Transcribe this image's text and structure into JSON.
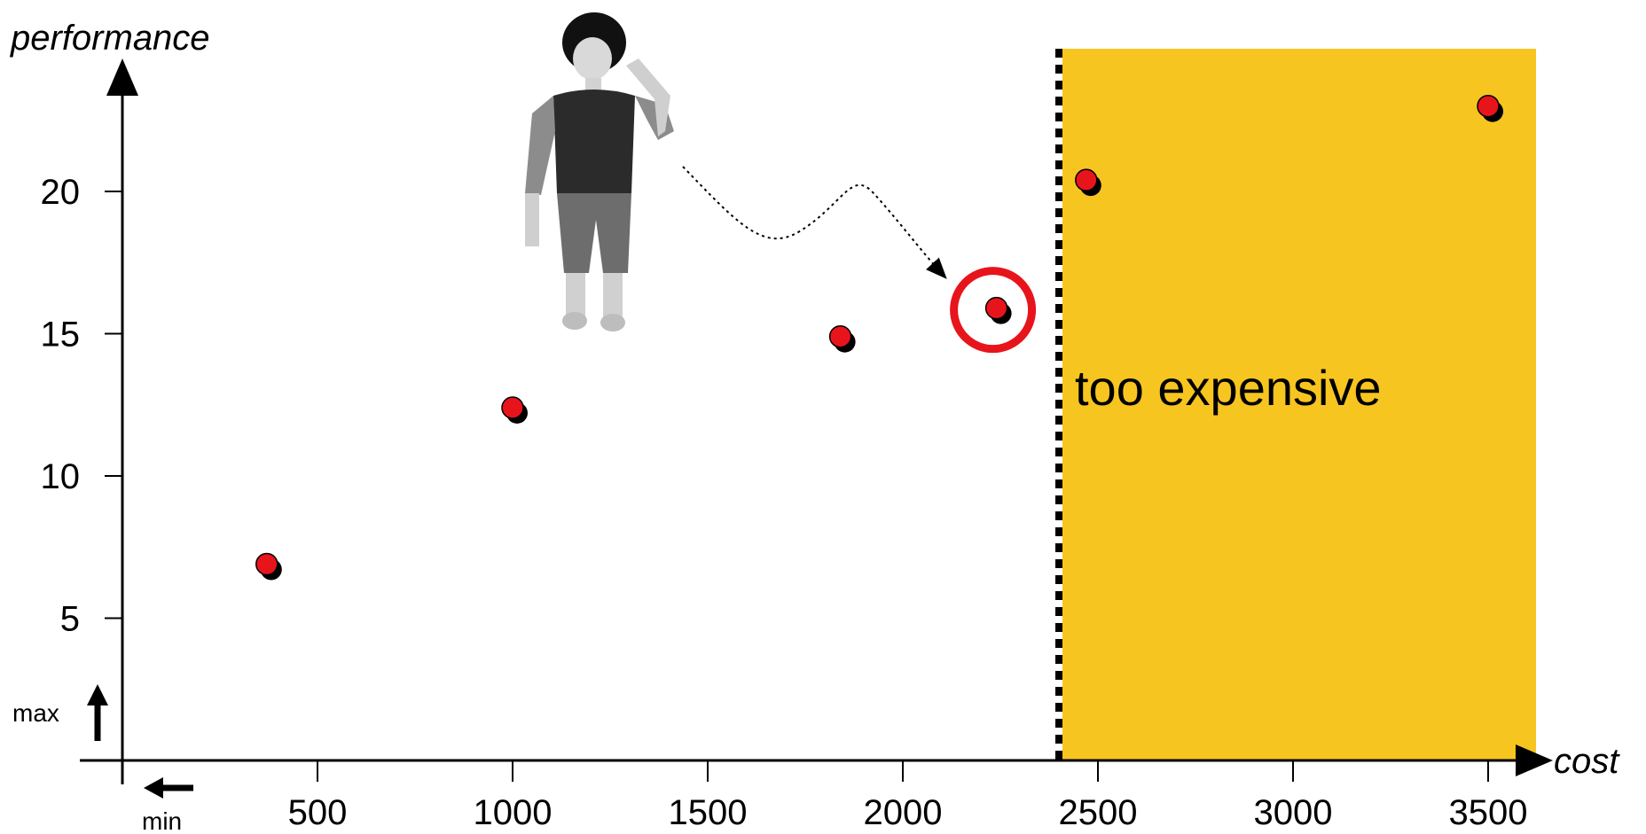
{
  "chart_data": {
    "type": "scatter",
    "xlabel": "cost",
    "ylabel": "performance",
    "xlim": [
      0,
      3600
    ],
    "ylim": [
      0,
      25
    ],
    "x_ticks": [
      500,
      1000,
      1500,
      2000,
      2500,
      3000,
      3500
    ],
    "y_ticks": [
      5,
      10,
      15,
      20
    ],
    "points": [
      {
        "x": 370,
        "y": 6.9
      },
      {
        "x": 1000,
        "y": 12.4
      },
      {
        "x": 1840,
        "y": 14.9
      },
      {
        "x": 2240,
        "y": 15.9,
        "highlighted": true
      },
      {
        "x": 2470,
        "y": 20.4
      },
      {
        "x": 3500,
        "y": 23.0
      }
    ],
    "threshold": {
      "x": 2400,
      "label": "too expensive"
    },
    "direction_labels": {
      "y": "max",
      "x": "min"
    },
    "grid": false
  },
  "colors": {
    "region": "#f7c51f",
    "point": "#e8141c",
    "highlight_ring": "#e8141c",
    "shadow": "#000000"
  }
}
